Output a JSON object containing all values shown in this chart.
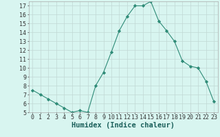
{
  "xlabel": "Humidex (Indice chaleur)",
  "x_values": [
    0,
    1,
    2,
    3,
    4,
    5,
    6,
    7,
    8,
    9,
    10,
    11,
    12,
    13,
    14,
    15,
    16,
    17,
    18,
    19,
    20,
    21,
    22,
    23
  ],
  "y_values": [
    7.5,
    7.0,
    6.5,
    6.0,
    5.5,
    5.0,
    5.2,
    5.0,
    8.0,
    9.5,
    11.8,
    14.2,
    15.8,
    17.0,
    17.0,
    17.5,
    15.3,
    14.2,
    13.0,
    10.8,
    10.2,
    10.0,
    8.5,
    6.2
  ],
  "line_color": "#2e8b77",
  "marker": "D",
  "marker_size": 2.2,
  "bg_color": "#d8f5f0",
  "grid_color": "#c0d8d4",
  "ylim": [
    5,
    17.5
  ],
  "xlim": [
    -0.5,
    23.5
  ],
  "yticks": [
    5,
    6,
    7,
    8,
    9,
    10,
    11,
    12,
    13,
    14,
    15,
    16,
    17
  ],
  "xticks": [
    0,
    1,
    2,
    3,
    4,
    5,
    6,
    7,
    8,
    9,
    10,
    11,
    12,
    13,
    14,
    15,
    16,
    17,
    18,
    19,
    20,
    21,
    22,
    23
  ],
  "tick_label_fontsize": 6,
  "xlabel_fontsize": 7.5
}
